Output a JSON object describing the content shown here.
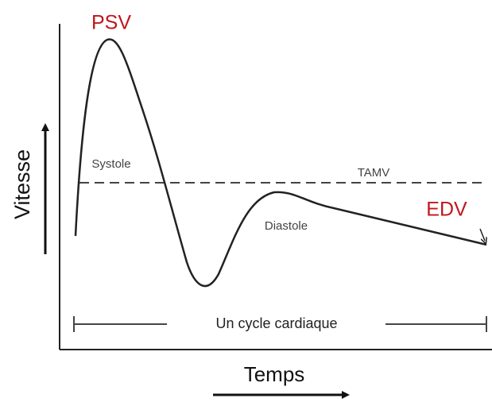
{
  "labels": {
    "psv": "PSV",
    "edv": "EDV",
    "systole": "Systole",
    "tamv": "TAMV",
    "diastole": "Diastole",
    "cycle": "Un cycle cardiaque",
    "y_axis": "Vitesse",
    "x_axis": "Temps"
  }
}
